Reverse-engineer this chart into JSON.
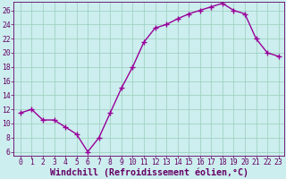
{
  "x": [
    0,
    1,
    2,
    3,
    4,
    5,
    6,
    7,
    8,
    9,
    10,
    11,
    12,
    13,
    14,
    15,
    16,
    17,
    18,
    19,
    20,
    21,
    22,
    23
  ],
  "y": [
    11.5,
    12.0,
    10.5,
    10.5,
    9.5,
    8.5,
    6.0,
    8.0,
    11.5,
    15.0,
    18.0,
    21.5,
    23.5,
    24.0,
    24.8,
    25.5,
    26.0,
    26.5,
    27.0,
    26.0,
    25.5,
    22.0,
    20.0,
    19.5
  ],
  "line_color": "#990099",
  "marker": "+",
  "bg_color": "#cceeee",
  "grid_color": "#99ccbb",
  "axis_color": "#660066",
  "xlabel": "Windchill (Refroidissement éolien,°C)",
  "ylim_min": 5.5,
  "ylim_max": 27.2,
  "yticks": [
    6,
    8,
    10,
    12,
    14,
    16,
    18,
    20,
    22,
    24,
    26
  ],
  "xticks": [
    0,
    1,
    2,
    3,
    4,
    5,
    6,
    7,
    8,
    9,
    10,
    11,
    12,
    13,
    14,
    15,
    16,
    17,
    18,
    19,
    20,
    21,
    22,
    23
  ],
  "tick_label_fontsize": 5.8,
  "xlabel_fontsize": 7.2,
  "line_width": 1.0,
  "marker_size": 4
}
